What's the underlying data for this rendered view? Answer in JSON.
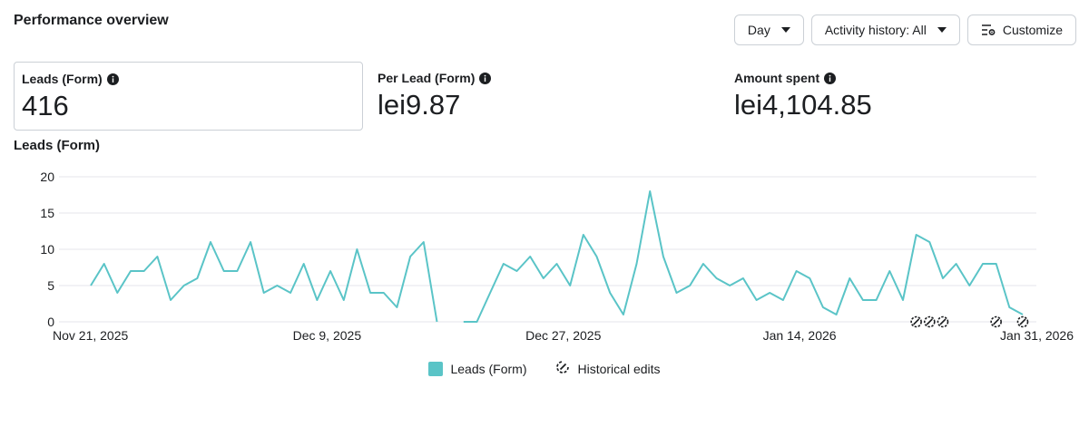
{
  "header": {
    "title": "Performance overview"
  },
  "toolbar": {
    "day_label": "Day",
    "activity_label": "Activity history: All",
    "customize_label": "Customize"
  },
  "metrics": [
    {
      "label": "Leads (Form)",
      "value": "416",
      "selected": true
    },
    {
      "label": "Per Lead (Form)",
      "value": "lei9.87",
      "selected": false
    },
    {
      "label": "Amount spent",
      "value": "lei4,104.85",
      "selected": false
    }
  ],
  "chart_title": "Leads (Form)",
  "colors": {
    "series": "#5ac4c7",
    "grid": "#e4e6eb",
    "text": "#1c1e21"
  },
  "chart_data": {
    "type": "line",
    "x_start": "2025-11-21",
    "x_end": "2026-01-31",
    "x_tick_labels": [
      "Nov 21, 2025",
      "Dec 9, 2025",
      "Dec 27, 2025",
      "Jan 14, 2026",
      "Jan 31, 2026"
    ],
    "ylim": [
      0,
      20
    ],
    "y_ticks": [
      0,
      5,
      10,
      15,
      20
    ],
    "grid": true,
    "series": [
      {
        "name": "Leads (Form)",
        "values": [
          5,
          8,
          4,
          7,
          7,
          9,
          3,
          5,
          6,
          11,
          7,
          7,
          11,
          4,
          5,
          4,
          8,
          3,
          7,
          3,
          10,
          4,
          4,
          2,
          9,
          11,
          0,
          null,
          0,
          0,
          4,
          8,
          7,
          9,
          6,
          8,
          5,
          12,
          9,
          4,
          1,
          8,
          18,
          9,
          4,
          5,
          8,
          6,
          5,
          6,
          3,
          4,
          3,
          7,
          6,
          2,
          1,
          6,
          3,
          3,
          7,
          3,
          12,
          11,
          6,
          8,
          5,
          8,
          8,
          2,
          1
        ]
      }
    ],
    "historical_edit_indices": [
      62,
      63,
      64,
      68,
      70
    ],
    "legend": [
      "Leads (Form)",
      "Historical edits"
    ],
    "legend_position": "bottom-center"
  },
  "legend": {
    "series_label": "Leads (Form)",
    "edits_label": "Historical edits"
  }
}
